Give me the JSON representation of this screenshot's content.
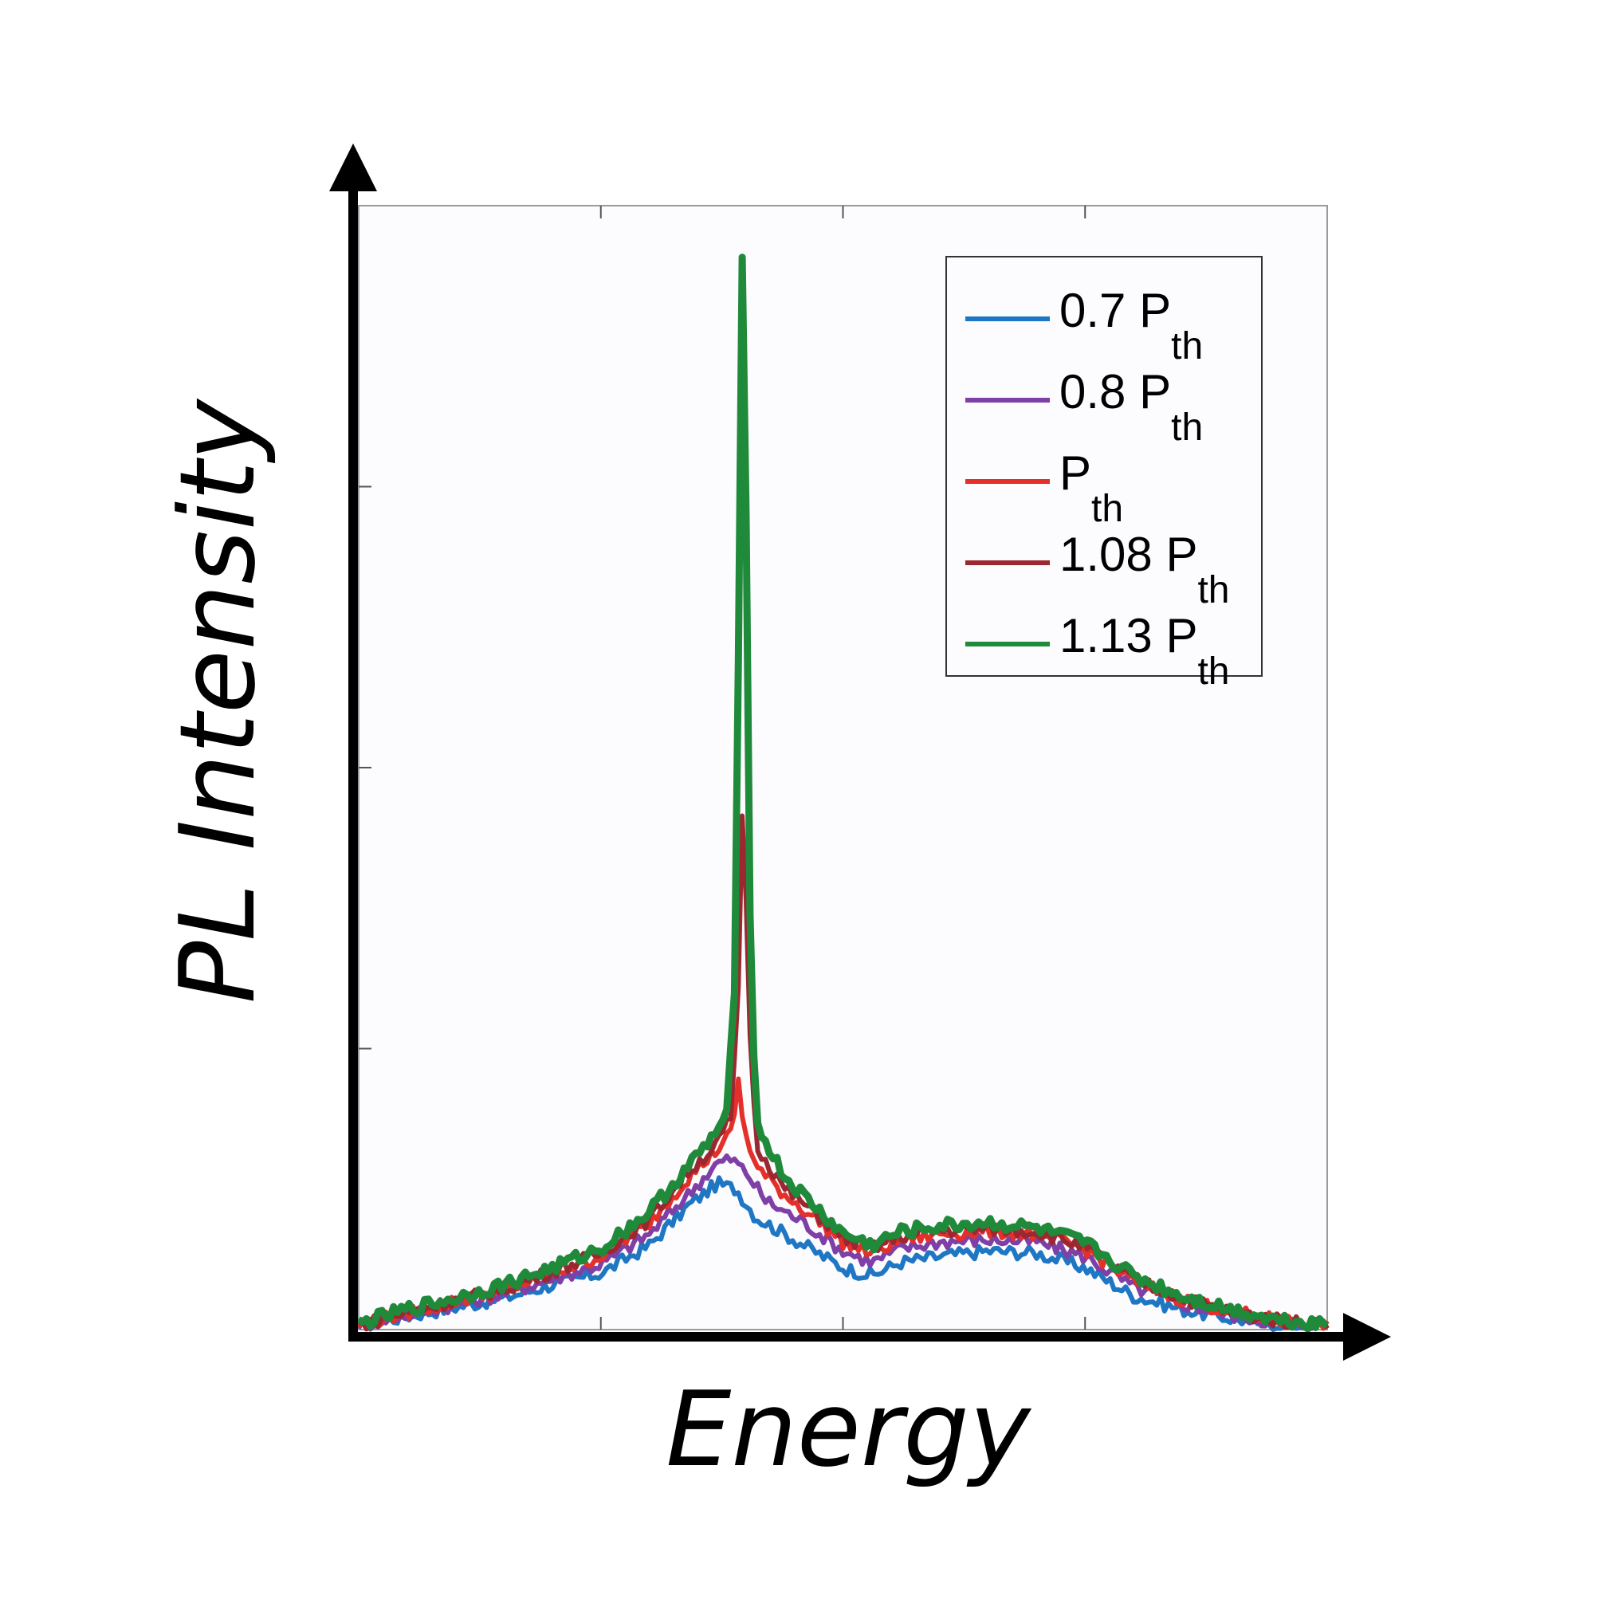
{
  "chart_data": {
    "type": "line",
    "xlabel": "Energy",
    "ylabel": "PL Intensity",
    "xlim": [
      0,
      1
    ],
    "ylim": [
      0,
      1
    ],
    "x_ticks": [
      "",
      "",
      ""
    ],
    "y_ticks": [
      "",
      "",
      ""
    ],
    "grid": false,
    "legend_position": "top-right",
    "series": [
      {
        "name": "0.7 P",
        "sub": "th",
        "color": "#1f77c4",
        "points": [
          [
            0,
            0.003
          ],
          [
            0.05,
            0.012
          ],
          [
            0.1,
            0.02
          ],
          [
            0.15,
            0.028
          ],
          [
            0.2,
            0.04
          ],
          [
            0.25,
            0.05
          ],
          [
            0.3,
            0.075
          ],
          [
            0.34,
            0.11
          ],
          [
            0.37,
            0.13
          ],
          [
            0.39,
            0.125
          ],
          [
            0.41,
            0.1
          ],
          [
            0.44,
            0.085
          ],
          [
            0.47,
            0.07
          ],
          [
            0.5,
            0.055
          ],
          [
            0.53,
            0.048
          ],
          [
            0.56,
            0.06
          ],
          [
            0.6,
            0.065
          ],
          [
            0.65,
            0.07
          ],
          [
            0.7,
            0.068
          ],
          [
            0.75,
            0.055
          ],
          [
            0.8,
            0.03
          ],
          [
            0.85,
            0.018
          ],
          [
            0.9,
            0.01
          ],
          [
            0.95,
            0.005
          ],
          [
            1,
            0.003
          ]
        ]
      },
      {
        "name": "0.8 P",
        "sub": "th",
        "color": "#7e3fa6",
        "points": [
          [
            0,
            0.003
          ],
          [
            0.05,
            0.014
          ],
          [
            0.1,
            0.022
          ],
          [
            0.15,
            0.032
          ],
          [
            0.2,
            0.045
          ],
          [
            0.25,
            0.058
          ],
          [
            0.3,
            0.085
          ],
          [
            0.34,
            0.12
          ],
          [
            0.37,
            0.148
          ],
          [
            0.385,
            0.152
          ],
          [
            0.4,
            0.14
          ],
          [
            0.42,
            0.115
          ],
          [
            0.46,
            0.095
          ],
          [
            0.5,
            0.07
          ],
          [
            0.53,
            0.06
          ],
          [
            0.56,
            0.072
          ],
          [
            0.6,
            0.078
          ],
          [
            0.65,
            0.08
          ],
          [
            0.7,
            0.078
          ],
          [
            0.75,
            0.065
          ],
          [
            0.8,
            0.038
          ],
          [
            0.85,
            0.023
          ],
          [
            0.9,
            0.013
          ],
          [
            0.95,
            0.006
          ],
          [
            1,
            0.003
          ]
        ]
      },
      {
        "name": "P",
        "sub": "th",
        "color": "#e42f2a",
        "points": [
          [
            0,
            0.004
          ],
          [
            0.05,
            0.015
          ],
          [
            0.1,
            0.025
          ],
          [
            0.15,
            0.035
          ],
          [
            0.2,
            0.05
          ],
          [
            0.25,
            0.065
          ],
          [
            0.3,
            0.095
          ],
          [
            0.34,
            0.135
          ],
          [
            0.37,
            0.16
          ],
          [
            0.385,
            0.175
          ],
          [
            0.392,
            0.22
          ],
          [
            0.397,
            0.182
          ],
          [
            0.41,
            0.145
          ],
          [
            0.44,
            0.12
          ],
          [
            0.47,
            0.1
          ],
          [
            0.5,
            0.078
          ],
          [
            0.53,
            0.068
          ],
          [
            0.56,
            0.08
          ],
          [
            0.6,
            0.085
          ],
          [
            0.65,
            0.088
          ],
          [
            0.7,
            0.085
          ],
          [
            0.75,
            0.072
          ],
          [
            0.8,
            0.043
          ],
          [
            0.85,
            0.027
          ],
          [
            0.9,
            0.016
          ],
          [
            0.95,
            0.008
          ],
          [
            1,
            0.004
          ]
        ]
      },
      {
        "name": "1.08 P",
        "sub": "th",
        "color": "#9b2830",
        "points": [
          [
            0,
            0.004
          ],
          [
            0.05,
            0.015
          ],
          [
            0.1,
            0.026
          ],
          [
            0.15,
            0.036
          ],
          [
            0.2,
            0.052
          ],
          [
            0.25,
            0.068
          ],
          [
            0.3,
            0.098
          ],
          [
            0.34,
            0.14
          ],
          [
            0.37,
            0.165
          ],
          [
            0.385,
            0.19
          ],
          [
            0.392,
            0.3
          ],
          [
            0.397,
            0.5
          ],
          [
            0.402,
            0.3
          ],
          [
            0.41,
            0.165
          ],
          [
            0.44,
            0.125
          ],
          [
            0.47,
            0.105
          ],
          [
            0.5,
            0.082
          ],
          [
            0.53,
            0.072
          ],
          [
            0.56,
            0.083
          ],
          [
            0.6,
            0.088
          ],
          [
            0.65,
            0.09
          ],
          [
            0.7,
            0.087
          ],
          [
            0.75,
            0.074
          ],
          [
            0.8,
            0.045
          ],
          [
            0.85,
            0.028
          ],
          [
            0.9,
            0.016
          ],
          [
            0.95,
            0.008
          ],
          [
            1,
            0.004
          ]
        ]
      },
      {
        "name": "1.13 P",
        "sub": "th",
        "color": "#1f8a3a",
        "points": [
          [
            0,
            0.005
          ],
          [
            0.05,
            0.018
          ],
          [
            0.1,
            0.028
          ],
          [
            0.15,
            0.04
          ],
          [
            0.2,
            0.055
          ],
          [
            0.25,
            0.072
          ],
          [
            0.3,
            0.105
          ],
          [
            0.34,
            0.145
          ],
          [
            0.36,
            0.165
          ],
          [
            0.38,
            0.19
          ],
          [
            0.388,
            0.3
          ],
          [
            0.392,
            0.6
          ],
          [
            0.395,
            0.96
          ],
          [
            0.398,
            0.96
          ],
          [
            0.401,
            0.6
          ],
          [
            0.405,
            0.3
          ],
          [
            0.412,
            0.18
          ],
          [
            0.44,
            0.135
          ],
          [
            0.47,
            0.11
          ],
          [
            0.5,
            0.085
          ],
          [
            0.53,
            0.075
          ],
          [
            0.56,
            0.087
          ],
          [
            0.6,
            0.092
          ],
          [
            0.65,
            0.095
          ],
          [
            0.7,
            0.09
          ],
          [
            0.75,
            0.077
          ],
          [
            0.8,
            0.048
          ],
          [
            0.85,
            0.03
          ],
          [
            0.9,
            0.018
          ],
          [
            0.95,
            0.009
          ],
          [
            1,
            0.005
          ]
        ]
      }
    ]
  }
}
